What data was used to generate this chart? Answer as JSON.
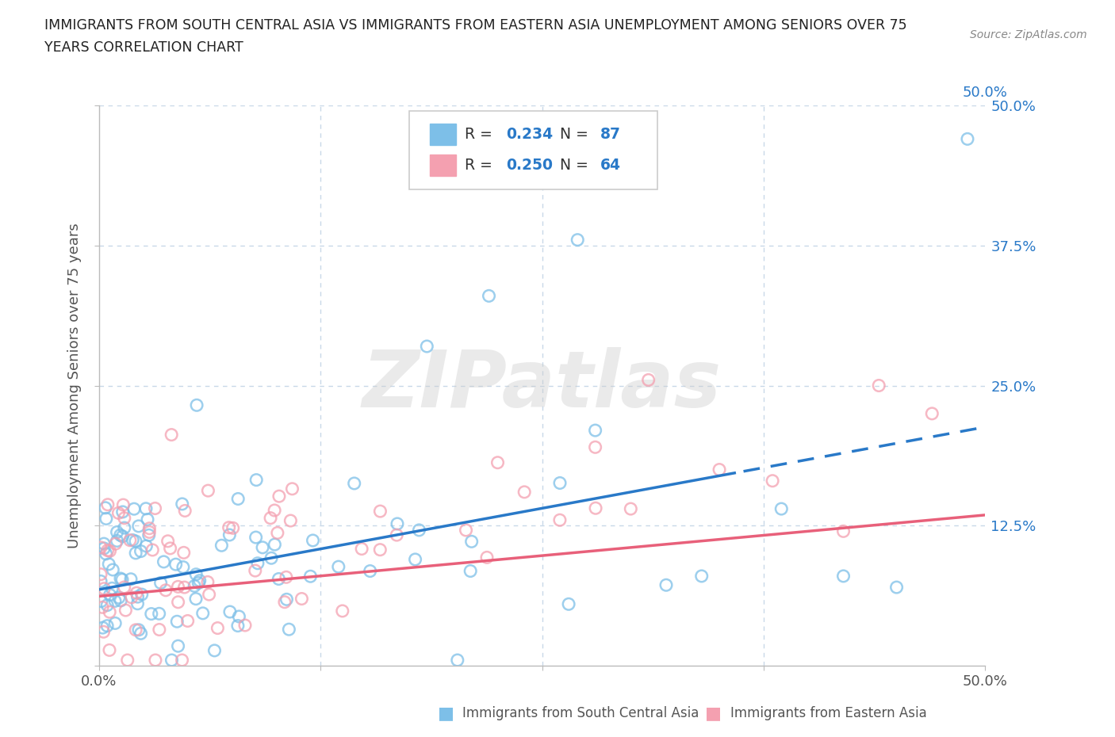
{
  "title_line1": "IMMIGRANTS FROM SOUTH CENTRAL ASIA VS IMMIGRANTS FROM EASTERN ASIA UNEMPLOYMENT AMONG SENIORS OVER 75",
  "title_line2": "YEARS CORRELATION CHART",
  "source": "Source: ZipAtlas.com",
  "ylabel": "Unemployment Among Seniors over 75 years",
  "watermark": "ZIPatlas",
  "series1_label": "Immigrants from South Central Asia",
  "series2_label": "Immigrants from Eastern Asia",
  "series1_R": 0.234,
  "series1_N": 87,
  "series2_R": 0.25,
  "series2_N": 64,
  "series1_color": "#7dbfe8",
  "series2_color": "#f4a0b0",
  "trend1_color": "#2979c8",
  "trend2_color": "#e8607a",
  "xlim": [
    0.0,
    0.5
  ],
  "ylim": [
    0.0,
    0.5
  ],
  "xticks": [
    0.0,
    0.125,
    0.25,
    0.375,
    0.5
  ],
  "yticks": [
    0.0,
    0.125,
    0.25,
    0.375,
    0.5
  ],
  "xticklabels": [
    "0.0%",
    "",
    "",
    "",
    "50.0%"
  ],
  "yticklabels": [
    "",
    "",
    "",
    "",
    ""
  ],
  "right_yticklabels": [
    "",
    "12.5%",
    "25.0%",
    "37.5%",
    "50.0%"
  ],
  "background_color": "#ffffff",
  "grid_color": "#c8d8e8"
}
